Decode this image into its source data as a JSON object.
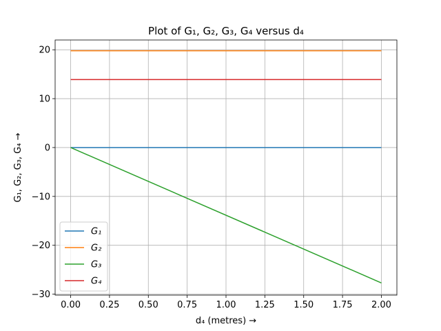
{
  "chart_data": {
    "type": "line",
    "title": "Plot of G₁, G₂, G₃, G₄ versus d₄",
    "xlabel": "d₄ (metres) →",
    "ylabel": "G₁, G₂, G₃, G₄ →",
    "xlim": [
      -0.1,
      2.1
    ],
    "ylim": [
      -30.2,
      22.0
    ],
    "xticks": [
      0.0,
      0.25,
      0.5,
      0.75,
      1.0,
      1.25,
      1.5,
      1.75,
      2.0
    ],
    "xtick_labels": [
      "0.00",
      "0.25",
      "0.50",
      "0.75",
      "1.00",
      "1.25",
      "1.50",
      "1.75",
      "2.00"
    ],
    "yticks": [
      -30,
      -20,
      -10,
      0,
      10,
      20
    ],
    "ytick_labels": [
      "−30",
      "−20",
      "−10",
      "0",
      "10",
      "20"
    ],
    "grid": true,
    "legend_position": "lower-left",
    "series": [
      {
        "name": "G₁",
        "color": "#1f77b4",
        "x": [
          0.0,
          2.0
        ],
        "y": [
          0.0,
          0.0
        ]
      },
      {
        "name": "G₂",
        "color": "#ff7f0e",
        "x": [
          0.0,
          2.0
        ],
        "y": [
          19.8,
          19.8
        ]
      },
      {
        "name": "G₃",
        "color": "#2ca02c",
        "x": [
          0.0,
          2.0
        ],
        "y": [
          0.0,
          -27.7
        ]
      },
      {
        "name": "G₄",
        "color": "#d62728",
        "x": [
          0.0,
          2.0
        ],
        "y": [
          13.9,
          13.9
        ]
      }
    ]
  }
}
